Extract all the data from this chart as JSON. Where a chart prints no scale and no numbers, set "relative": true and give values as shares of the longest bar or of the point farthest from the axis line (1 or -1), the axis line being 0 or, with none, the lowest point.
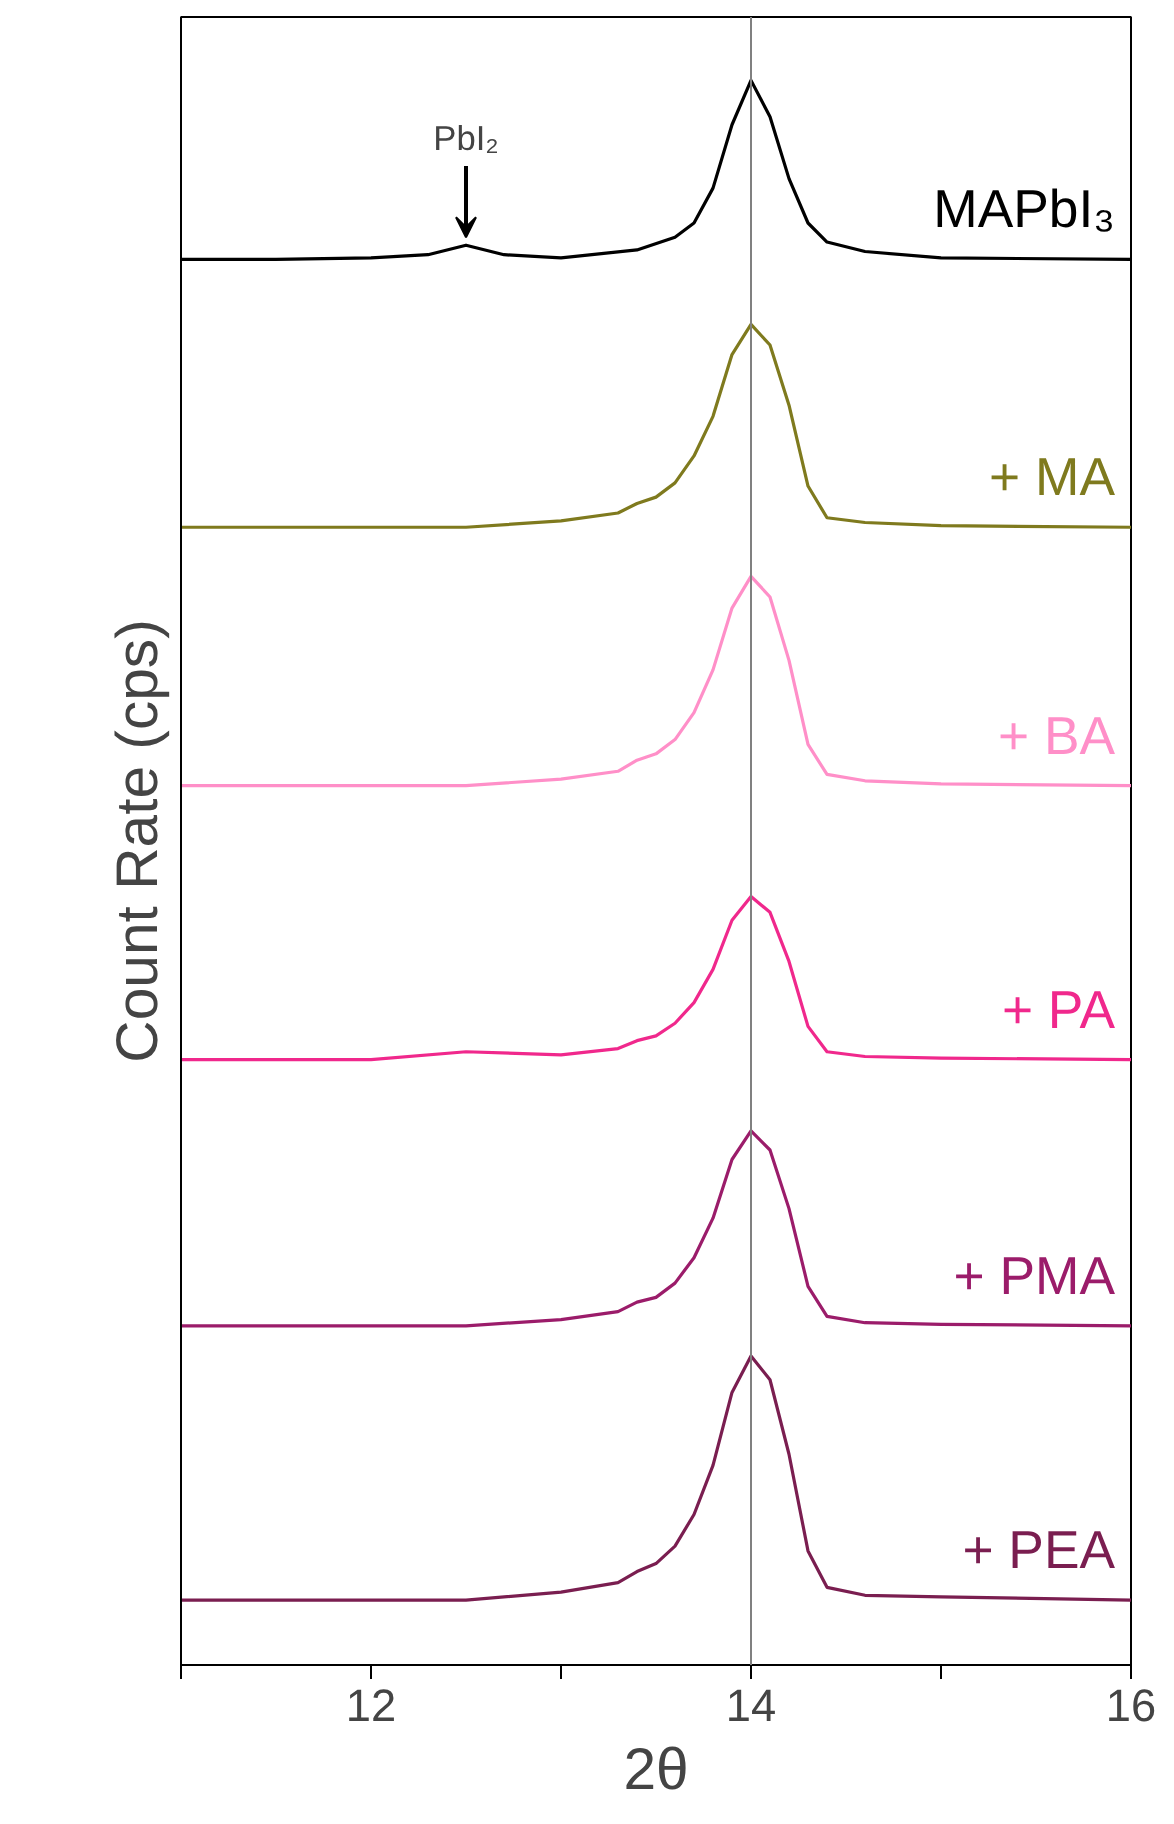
{
  "chart_data": {
    "type": "line",
    "relative": true,
    "xlabel": "2θ",
    "ylabel": "Count Rate (cps)",
    "xlim": [
      11,
      16
    ],
    "xticks": [
      {
        "value": 11,
        "label": null
      },
      12,
      {
        "value": 13,
        "label": null
      },
      14,
      {
        "value": 15,
        "label": null
      },
      16
    ],
    "tick_labels": "x",
    "grid": false,
    "marker": "none",
    "line_style": "solid",
    "ref_lines": [
      {
        "axis": "x",
        "value": 14,
        "label": null,
        "color": "#808080"
      }
    ],
    "annotations": [
      {
        "text": "PbI₂",
        "x": 12.5,
        "y": 0.896
      }
    ],
    "series": [
      {
        "name": "MAPbI₃",
        "color": "#000000",
        "x": [
          11,
          11.5,
          12,
          12.3,
          12.5,
          12.7,
          13,
          13.4,
          13.6,
          13.7,
          13.8,
          13.9,
          14,
          14.1,
          14.2,
          14.3,
          14.4,
          14.6,
          15,
          16
        ],
        "values": [
          0.887,
          0.887,
          0.888,
          0.89,
          0.896,
          0.89,
          0.888,
          0.893,
          0.901,
          0.91,
          0.932,
          0.972,
          1.0,
          0.977,
          0.938,
          0.91,
          0.898,
          0.892,
          0.888,
          0.887
        ]
      },
      {
        "name": "+ MA",
        "color": "#7f7a1e",
        "x": [
          11,
          12,
          12.5,
          13,
          13.3,
          13.4,
          13.5,
          13.6,
          13.7,
          13.8,
          13.9,
          14,
          14.1,
          14.2,
          14.3,
          14.4,
          14.6,
          15,
          16
        ],
        "values": [
          0.718,
          0.718,
          0.718,
          0.722,
          0.727,
          0.733,
          0.737,
          0.746,
          0.763,
          0.788,
          0.827,
          0.846,
          0.833,
          0.795,
          0.744,
          0.724,
          0.721,
          0.719,
          0.718
        ]
      },
      {
        "name": "+ BA",
        "color": "#ff8fc8",
        "x": [
          11,
          12,
          12.5,
          13,
          13.3,
          13.4,
          13.5,
          13.6,
          13.7,
          13.8,
          13.9,
          14,
          14.1,
          14.2,
          14.3,
          14.4,
          14.6,
          15,
          16
        ],
        "values": [
          0.555,
          0.555,
          0.555,
          0.559,
          0.564,
          0.571,
          0.575,
          0.584,
          0.601,
          0.628,
          0.667,
          0.687,
          0.674,
          0.634,
          0.581,
          0.562,
          0.558,
          0.556,
          0.555
        ]
      },
      {
        "name": "+ PA",
        "color": "#f0288c",
        "x": [
          11,
          12,
          12.5,
          13,
          13.3,
          13.4,
          13.5,
          13.6,
          13.7,
          13.8,
          13.9,
          14,
          14.1,
          14.2,
          14.3,
          14.4,
          14.6,
          15,
          16
        ],
        "values": [
          0.382,
          0.382,
          0.387,
          0.385,
          0.389,
          0.394,
          0.397,
          0.405,
          0.418,
          0.439,
          0.47,
          0.485,
          0.475,
          0.444,
          0.403,
          0.387,
          0.384,
          0.383,
          0.382
        ]
      },
      {
        "name": "+ PMA",
        "color": "#9b1c6a",
        "x": [
          11,
          12,
          12.5,
          13,
          13.3,
          13.4,
          13.5,
          13.6,
          13.7,
          13.8,
          13.9,
          14,
          14.1,
          14.2,
          14.3,
          14.4,
          14.6,
          15,
          16
        ],
        "values": [
          0.214,
          0.214,
          0.214,
          0.218,
          0.223,
          0.229,
          0.232,
          0.241,
          0.257,
          0.282,
          0.319,
          0.337,
          0.325,
          0.288,
          0.239,
          0.22,
          0.216,
          0.215,
          0.214
        ]
      },
      {
        "name": "+ PEA",
        "color": "#7a1e50",
        "x": [
          11,
          12,
          12.5,
          13,
          13.3,
          13.4,
          13.5,
          13.6,
          13.7,
          13.8,
          13.9,
          14,
          14.1,
          14.2,
          14.3,
          14.4,
          14.6,
          15,
          16
        ],
        "values": [
          0.041,
          0.041,
          0.041,
          0.046,
          0.052,
          0.059,
          0.064,
          0.075,
          0.095,
          0.126,
          0.172,
          0.195,
          0.18,
          0.133,
          0.072,
          0.049,
          0.044,
          0.043,
          0.041
        ]
      }
    ]
  }
}
